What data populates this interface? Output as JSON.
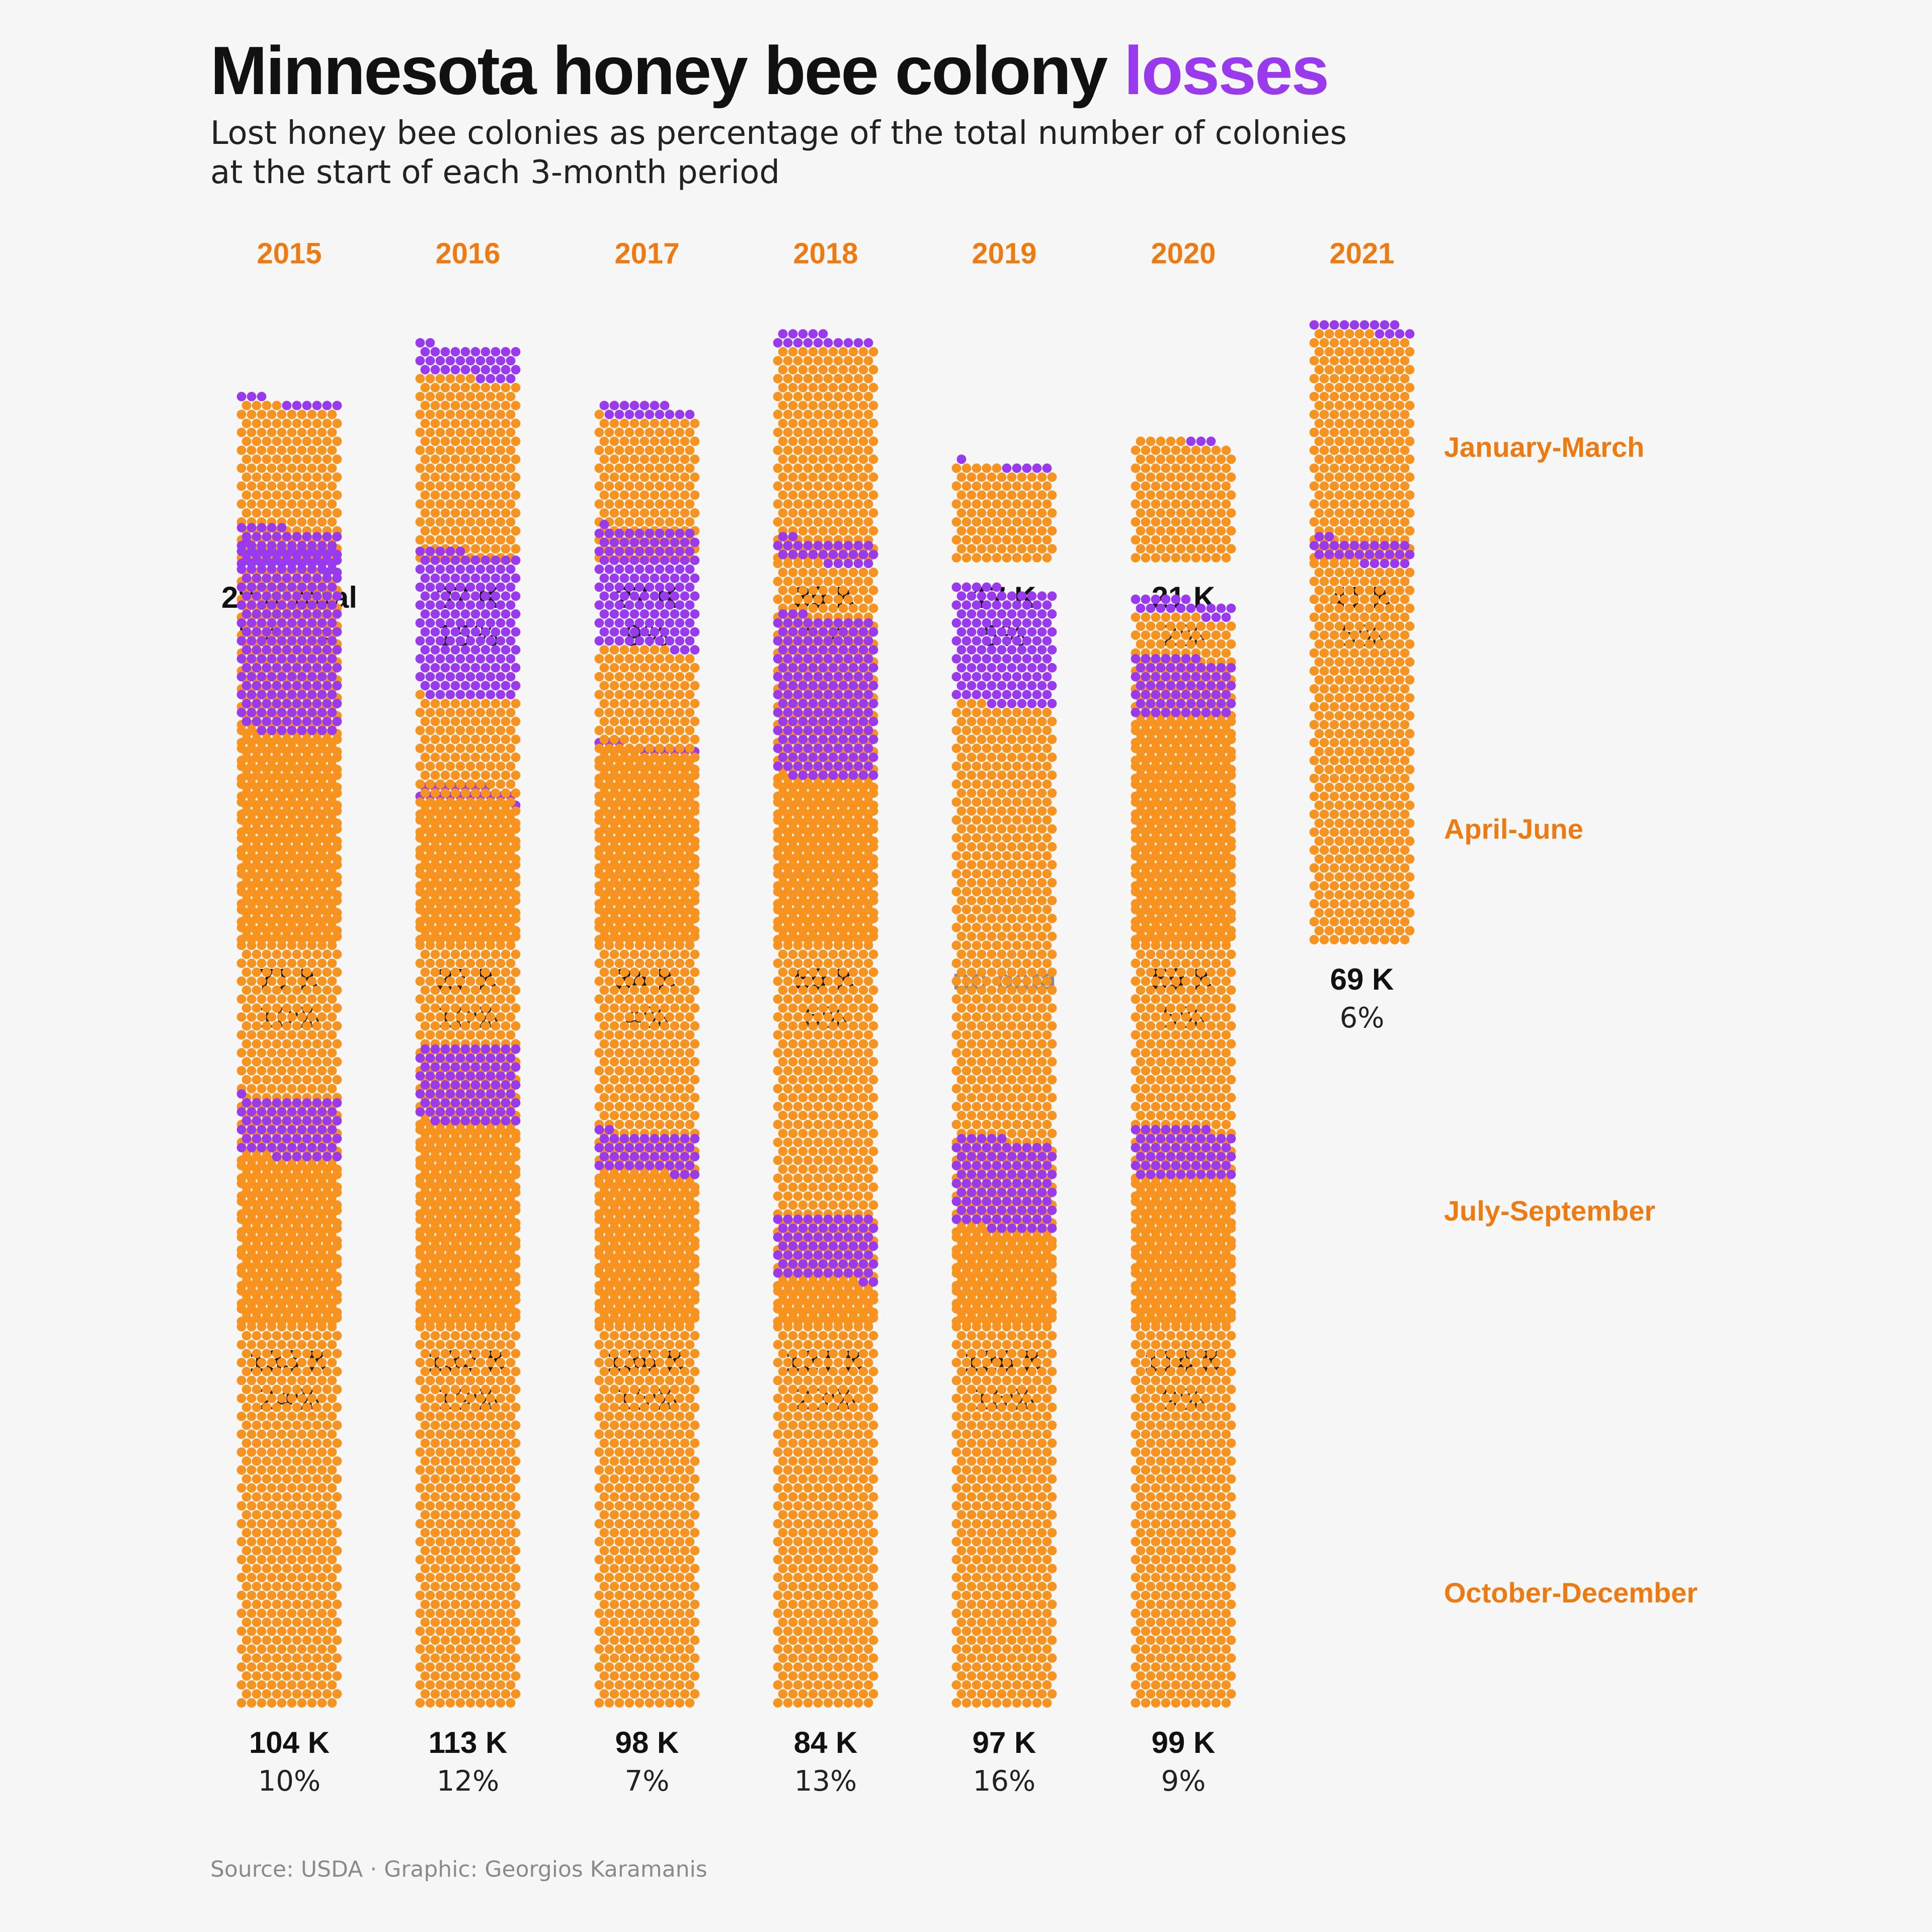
{
  "header": {
    "title_main": "Minnesota honey bee colony",
    "title_accent": "losses",
    "subtitle_line1": "Lost honey bee colonies as percentage of the total number of colonies",
    "subtitle_line2": "at the start of each 3-month period"
  },
  "footer": {
    "source": "Source: USDA · Graphic: Georgios Karamanis"
  },
  "colors": {
    "kept": "#f7931e",
    "lost": "#9a3aef",
    "year_label": "#ee7b12",
    "period_label": "#ee7b12",
    "text": "#111111",
    "muted": "#8a8a8a",
    "background": "#f7f7f7"
  },
  "chart_data": {
    "type": "waffle",
    "unit": "thousand colonies",
    "years": [
      "2015",
      "2016",
      "2017",
      "2018",
      "2019",
      "2020",
      "2021"
    ],
    "periods": [
      "January-March",
      "April-June",
      "July-September",
      "October-December"
    ],
    "total_suffix": " K",
    "first_total_suffix": " K total",
    "first_pct_suffix": "% lost",
    "no_data_label": "no data",
    "grid": [
      [
        {
          "total": 28,
          "lost_pct": 5
        },
        {
          "total": 37,
          "lost_pct": 15
        },
        {
          "total": 27,
          "lost_pct": 9
        },
        {
          "total": 39,
          "lost_pct": 6
        },
        {
          "total": 17,
          "lost_pct": 5
        },
        {
          "total": 21,
          "lost_pct": 2
        },
        {
          "total": 41,
          "lost_pct": 5
        }
      ],
      [
        {
          "total": 71,
          "lost_pct": 10
        },
        {
          "total": 27,
          "lost_pct": 10
        },
        {
          "total": 34,
          "lost_pct": 4
        },
        {
          "total": 69,
          "lost_pct": 6
        },
        null,
        {
          "total": 59,
          "lost_pct": 5
        },
        {
          "total": 69,
          "lost_pct": 6
        }
      ],
      [
        {
          "total": 133,
          "lost_pct": 24
        },
        {
          "total": 132,
          "lost_pct": 19
        },
        {
          "total": 136,
          "lost_pct": 15
        },
        {
          "total": 121,
          "lost_pct": 23
        },
        {
          "total": 126,
          "lost_pct": 16
        },
        {
          "total": 114,
          "lost_pct": 9
        },
        "blank"
      ],
      [
        {
          "total": 104,
          "lost_pct": 10
        },
        {
          "total": 113,
          "lost_pct": 12
        },
        {
          "total": 98,
          "lost_pct": 7
        },
        {
          "total": 84,
          "lost_pct": 13
        },
        {
          "total": 97,
          "lost_pct": 16
        },
        {
          "total": 99,
          "lost_pct": 9
        },
        "blank"
      ]
    ]
  }
}
